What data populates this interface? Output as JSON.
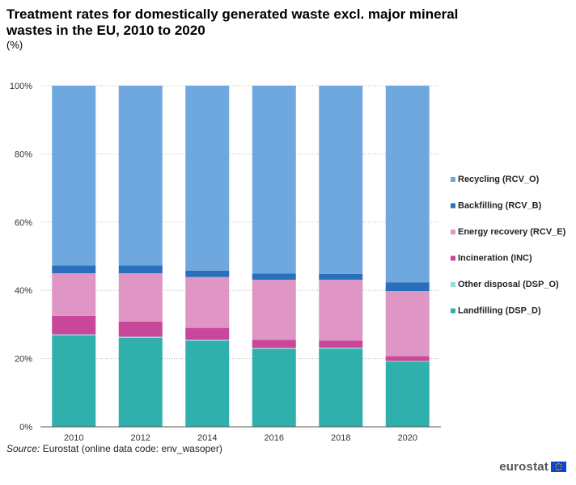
{
  "title": "Treatment rates for domestically generated waste excl. major mineral wastes in the EU, 2010 to 2020",
  "unit": "(%)",
  "source_label": "Source:",
  "source_text": "Eurostat (online data code: env_wasoper)",
  "logo_text": "eurostat",
  "chart_data": {
    "type": "bar",
    "stacked": true,
    "categories": [
      "2010",
      "2012",
      "2014",
      "2016",
      "2018",
      "2020"
    ],
    "ylim": [
      0,
      100
    ],
    "yticks": [
      0,
      20,
      40,
      60,
      80,
      100
    ],
    "ytick_labels": [
      "0%",
      "20%",
      "40%",
      "60%",
      "80%",
      "100%"
    ],
    "grid": true,
    "legend_position": "right",
    "series": [
      {
        "name": "Landfilling (DSP_D)",
        "color": "#2fb0ac",
        "values": [
          26.8,
          26.1,
          25.2,
          22.8,
          22.9,
          19.1
        ]
      },
      {
        "name": "Other disposal (DSP_O)",
        "color": "#8fdde0",
        "values": [
          0.3,
          0.3,
          0.3,
          0.3,
          0.3,
          0.2
        ]
      },
      {
        "name": "Incineration (INC)",
        "color": "#c9479a",
        "values": [
          5.4,
          4.4,
          3.5,
          2.4,
          2.1,
          1.4
        ]
      },
      {
        "name": "Energy recovery (RCV_E)",
        "color": "#df96c5",
        "values": [
          12.5,
          14.2,
          14.9,
          17.6,
          17.8,
          19.1
        ]
      },
      {
        "name": "Backfilling (RCV_B)",
        "color": "#2a6fbb",
        "values": [
          2.3,
          2.3,
          1.9,
          1.8,
          1.7,
          2.5
        ]
      },
      {
        "name": "Recycling (RCV_O)",
        "color": "#6fa8de",
        "values": [
          52.7,
          52.7,
          54.2,
          55.1,
          55.2,
          57.7
        ]
      }
    ],
    "legend_order": [
      5,
      4,
      3,
      2,
      1,
      0
    ]
  }
}
